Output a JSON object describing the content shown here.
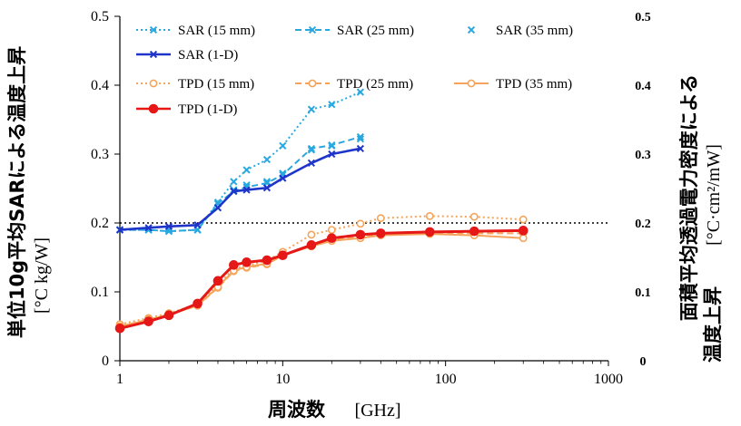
{
  "chart_data": {
    "type": "line",
    "x_scale": "log",
    "xlim": [
      1,
      1000
    ],
    "ylim_left": [
      0,
      0.5
    ],
    "ylim_right": [
      0,
      0.5
    ],
    "x_ticks": [
      "1",
      "10",
      "100",
      "1000"
    ],
    "y_ticks_left": [
      "0",
      "0.1",
      "0.2",
      "0.3",
      "0.4",
      "0.5"
    ],
    "y_ticks_right": [
      "0",
      "0.1",
      "0.2",
      "0.3",
      "0.4",
      "0.5"
    ],
    "xlabel": "周波数",
    "xlabel_unit": "[GHz]",
    "ylabel_left": "単位10g平均SARによる温度上昇",
    "ylabel_left_unit": "[°C kg/W]",
    "ylabel_right": "面積平均透過電力密度による",
    "ylabel_right_line2": "温度上昇",
    "ylabel_right_unit": "[°C·cm²/mW]",
    "reference_line": 0.2,
    "legend_position": "top",
    "colors": {
      "sar_light": "#29A8E0",
      "sar_dark": "#1F35C9",
      "tpd_light": "#F5A45A",
      "tpd_dark": "#E51717"
    },
    "series": [
      {
        "name": "SAR (15 mm)",
        "style": "dotted",
        "marker": "x",
        "color": "#29A8E0",
        "x": [
          1,
          1.5,
          2,
          3,
          4,
          5,
          6,
          8,
          10,
          15,
          20,
          30
        ],
        "y": [
          0.19,
          0.19,
          0.188,
          0.19,
          0.23,
          0.26,
          0.277,
          0.292,
          0.312,
          0.365,
          0.372,
          0.39
        ]
      },
      {
        "name": "SAR (25 mm)",
        "style": "dashed",
        "marker": "x",
        "color": "#29A8E0",
        "x": [
          1,
          1.5,
          2,
          3,
          4,
          5,
          6,
          8,
          10,
          15,
          20,
          30
        ],
        "y": [
          0.19,
          0.19,
          0.188,
          0.19,
          0.228,
          0.246,
          0.252,
          0.258,
          0.27,
          0.308,
          0.313,
          0.325
        ]
      },
      {
        "name": "SAR (35 mm)",
        "style": "none",
        "marker": "x",
        "color": "#29A8E0",
        "x": [
          1,
          1.5,
          2,
          3,
          4,
          5,
          6,
          8,
          10,
          15,
          20,
          30
        ],
        "y": [
          0.19,
          0.19,
          0.19,
          0.19,
          0.228,
          0.248,
          0.255,
          0.26,
          0.272,
          0.306,
          0.312,
          0.322
        ]
      },
      {
        "name": "SAR (1-D)",
        "style": "solid",
        "marker": "x",
        "color": "#1F35C9",
        "x": [
          1,
          1.5,
          2,
          3,
          4,
          5,
          6,
          8,
          10,
          15,
          20,
          30
        ],
        "y": [
          0.19,
          0.193,
          0.195,
          0.197,
          0.222,
          0.246,
          0.248,
          0.251,
          0.265,
          0.287,
          0.3,
          0.308
        ]
      },
      {
        "name": "TPD (15 mm)",
        "style": "dotted",
        "marker": "circle-open",
        "color": "#F5A45A",
        "x": [
          1,
          1.5,
          2,
          3,
          4,
          5,
          6,
          8,
          10,
          15,
          20,
          30,
          40,
          80,
          150,
          300
        ],
        "y": [
          0.053,
          0.062,
          0.069,
          0.082,
          0.11,
          0.134,
          0.138,
          0.145,
          0.158,
          0.183,
          0.19,
          0.199,
          0.207,
          0.21,
          0.209,
          0.205
        ]
      },
      {
        "name": "TPD (25 mm)",
        "style": "dashed",
        "marker": "circle-open",
        "color": "#F5A45A",
        "x": [
          1,
          1.5,
          2,
          3,
          4,
          5,
          6,
          8,
          10,
          15,
          20,
          30,
          40,
          80,
          150,
          300
        ],
        "y": [
          0.05,
          0.06,
          0.067,
          0.08,
          0.106,
          0.13,
          0.135,
          0.14,
          0.153,
          0.167,
          0.175,
          0.18,
          0.183,
          0.186,
          0.185,
          0.185
        ]
      },
      {
        "name": "TPD (35 mm)",
        "style": "solid",
        "marker": "circle-open",
        "color": "#F5A45A",
        "x": [
          1,
          1.5,
          2,
          3,
          4,
          5,
          6,
          8,
          10,
          15,
          20,
          30,
          40,
          80,
          150,
          300
        ],
        "y": [
          0.05,
          0.059,
          0.067,
          0.08,
          0.107,
          0.131,
          0.136,
          0.141,
          0.153,
          0.166,
          0.174,
          0.178,
          0.182,
          0.184,
          0.182,
          0.178
        ]
      },
      {
        "name": "TPD (1-D)",
        "style": "solid",
        "marker": "circle-filled",
        "color": "#E51717",
        "x": [
          1,
          1.5,
          2,
          3,
          4,
          5,
          6,
          8,
          10,
          15,
          20,
          30,
          40,
          80,
          150,
          300
        ],
        "y": [
          0.047,
          0.057,
          0.066,
          0.083,
          0.116,
          0.139,
          0.143,
          0.146,
          0.153,
          0.168,
          0.178,
          0.183,
          0.185,
          0.187,
          0.188,
          0.189
        ]
      }
    ]
  }
}
